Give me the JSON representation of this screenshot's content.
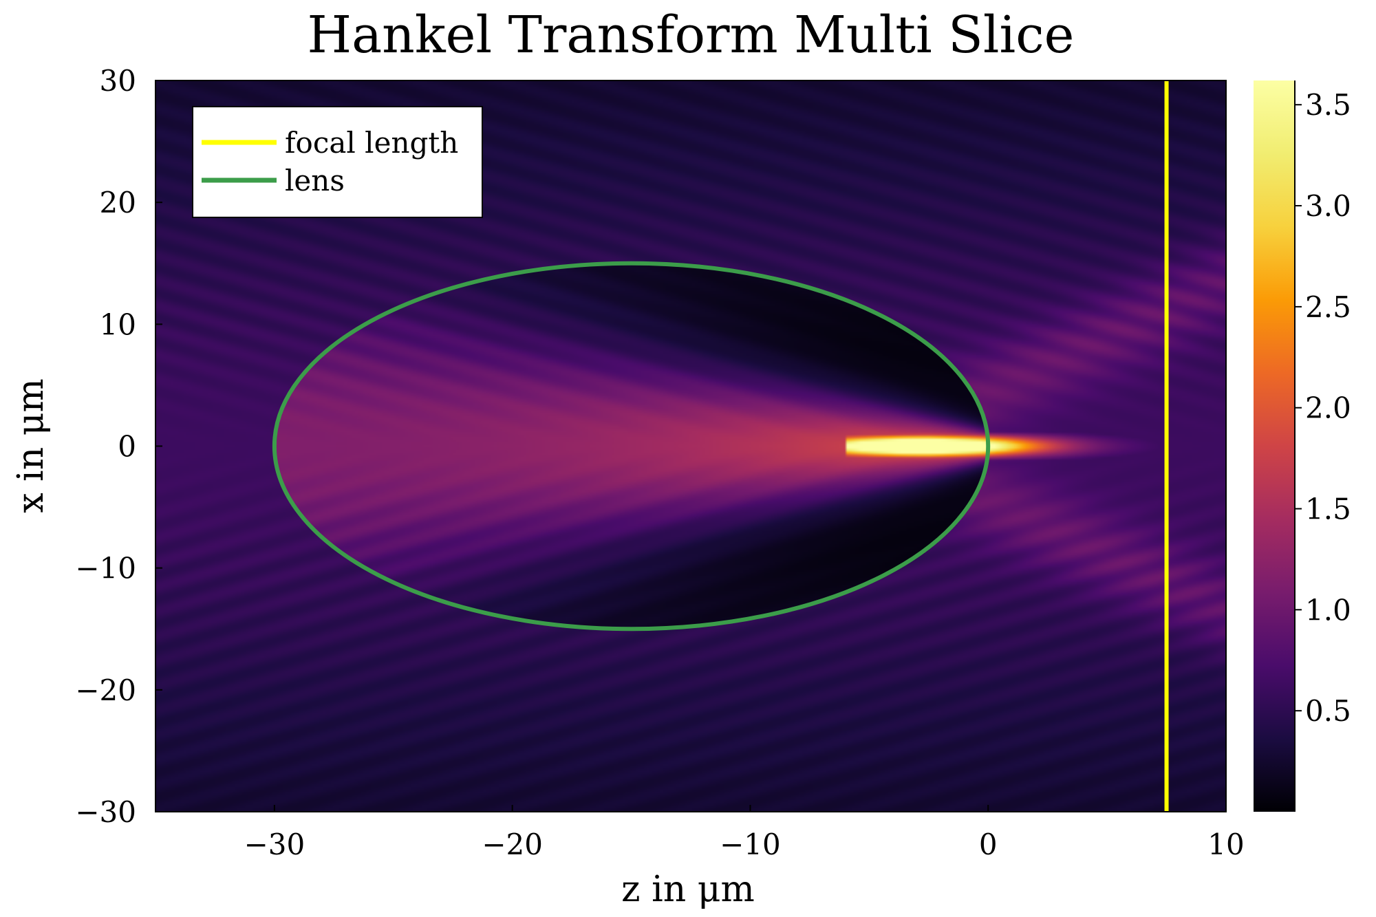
{
  "chart_data": {
    "type": "heatmap",
    "title": "Hankel Transform Multi Slice",
    "xlabel": "z in μm",
    "ylabel": "x in μm",
    "xlim": [
      -35,
      10
    ],
    "ylim": [
      -30,
      30
    ],
    "x_ticks": [
      -30,
      -20,
      -10,
      0,
      10
    ],
    "y_ticks": [
      30,
      20,
      10,
      0,
      -10,
      -20,
      -30
    ],
    "x_tick_labels": [
      "−30",
      "−20",
      "−10",
      "0",
      "10"
    ],
    "y_tick_labels": [
      "30",
      "20",
      "10",
      "0",
      "−10",
      "−20",
      "−30"
    ],
    "colorbar": {
      "colormap": "inferno",
      "range": [
        0,
        3.62
      ],
      "ticks": [
        0.5,
        1.0,
        1.5,
        2.0,
        2.5,
        3.0,
        3.5
      ],
      "tick_labels": [
        "0.5",
        "1.0",
        "1.5",
        "2.0",
        "2.5",
        "3.0",
        "3.5"
      ]
    },
    "legend": {
      "placement": "top-left",
      "entries": [
        {
          "name": "focal length",
          "color": "#ffff00"
        },
        {
          "name": "lens",
          "color": "#3c9d4a"
        }
      ]
    },
    "overlays": {
      "focal_length": {
        "type": "vertical-line",
        "z": 7.5,
        "color": "#ffff00"
      },
      "lens": {
        "type": "ellipse",
        "center_z": -15,
        "center_x": 0,
        "semi_axis_z": 15,
        "semi_axis_x": 15,
        "color": "#3c9d4a"
      }
    },
    "field_features": {
      "focus_peak_z": -2.5,
      "focus_peak_value": 3.6,
      "background_value": 0.55
    }
  }
}
